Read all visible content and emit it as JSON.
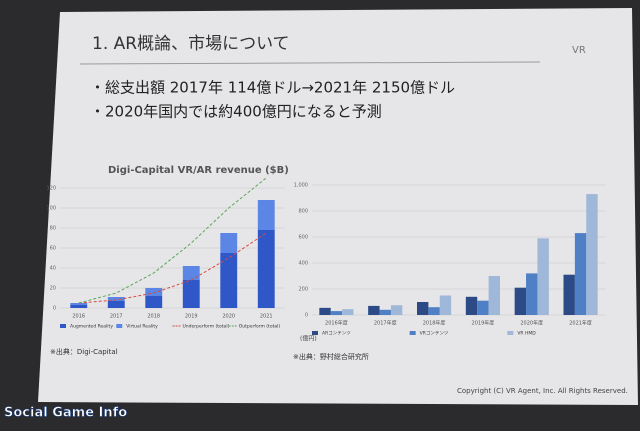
{
  "slide": {
    "title": "1. AR概論、市場について",
    "logo": "VR",
    "bullets": [
      "・総支出額 2017年 114億ドル→2021年 2150億ドル",
      "・2020年国内では約400億円になると予測"
    ],
    "copyright": "Copyright (C) VR Agent, Inc. All Rights Reserved."
  },
  "left_chart": {
    "type": "bar",
    "stacked": true,
    "title": "Digi-Capital VR/AR revenue ($B)",
    "categories": [
      "2016",
      "2017",
      "2018",
      "2019",
      "2020",
      "2021"
    ],
    "series": [
      {
        "name": "Augmented Reality",
        "color": "#2f57c8",
        "mark": "bar",
        "values": [
          3,
          7,
          12,
          28,
          55,
          78
        ]
      },
      {
        "name": "Virtual Reality",
        "color": "#5b86e6",
        "mark": "bar",
        "values": [
          2,
          4,
          8,
          14,
          20,
          30
        ]
      },
      {
        "name": "Underperform (total)",
        "color": "#d84a3a",
        "mark": "line",
        "values": [
          5,
          8,
          15,
          28,
          50,
          75
        ]
      },
      {
        "name": "Outperform (total)",
        "color": "#5aa55a",
        "mark": "line",
        "values": [
          5,
          15,
          35,
          65,
          100,
          130
        ]
      }
    ],
    "ylim": [
      0,
      130
    ],
    "yticks": [
      0,
      20,
      40,
      60,
      80,
      100,
      120
    ],
    "source": "※出典：Digi-Capital"
  },
  "right_chart": {
    "type": "bar",
    "stacked": false,
    "categories": [
      "2016年度",
      "2017年度",
      "2018年度",
      "2019年度",
      "2020年度",
      "2021年度"
    ],
    "series": [
      {
        "name": "ARコンテンツ",
        "color": "#2c4a86",
        "mark": "bar",
        "values": [
          55,
          70,
          100,
          140,
          210,
          310
        ]
      },
      {
        "name": "VRコンテンツ",
        "color": "#4f7fc4",
        "mark": "bar",
        "values": [
          30,
          40,
          60,
          110,
          320,
          630
        ]
      },
      {
        "name": "VR HMD",
        "color": "#9fb7d8",
        "mark": "bar",
        "values": [
          45,
          75,
          150,
          300,
          590,
          930
        ]
      }
    ],
    "ylim": [
      0,
      1000
    ],
    "yticks": [
      0,
      200,
      400,
      600,
      800,
      {
        "value": 1000,
        "label": "1,000"
      }
    ],
    "unit": "(億円)",
    "source": "※出典：野村総合研究所"
  },
  "watermark": "Social Game Info"
}
